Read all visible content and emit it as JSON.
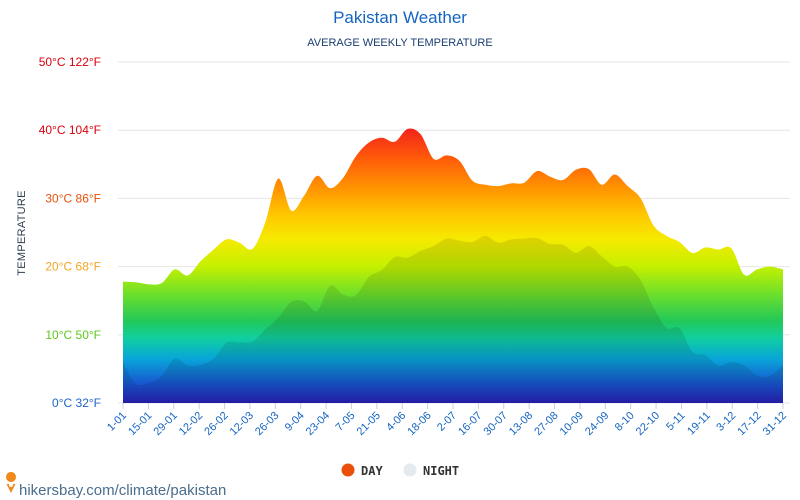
{
  "chart_data": {
    "type": "area",
    "title": "Pakistan Weather",
    "subtitle": "AVERAGE WEEKLY TEMPERATURE",
    "ylabel": "TEMPERATURE",
    "ylim": [
      0,
      50
    ],
    "yticks": [
      {
        "value": 0,
        "label": "0°C 32°F",
        "color": "#1e64c8"
      },
      {
        "value": 10,
        "label": "10°C 50°F",
        "color": "#5fc91e"
      },
      {
        "value": 20,
        "label": "20°C 68°F",
        "color": "#f5a623"
      },
      {
        "value": 30,
        "label": "30°C 86°F",
        "color": "#e8500a"
      },
      {
        "value": 40,
        "label": "40°C 104°F",
        "color": "#d9000d"
      },
      {
        "value": 50,
        "label": "50°C 122°F",
        "color": "#d9000d"
      }
    ],
    "xticks": [
      "1-01",
      "15-01",
      "29-01",
      "12-02",
      "26-02",
      "12-03",
      "26-03",
      "9-04",
      "23-04",
      "7-05",
      "21-05",
      "4-06",
      "18-06",
      "2-07",
      "16-07",
      "30-07",
      "13-08",
      "27-08",
      "10-09",
      "24-09",
      "8-10",
      "22-10",
      "5-11",
      "19-11",
      "3-12",
      "17-12",
      "31-12"
    ],
    "grid": true,
    "legend_position": "bottom",
    "series": [
      {
        "name": "DAY",
        "color": "#e8500a",
        "values": [
          17.8,
          17.7,
          17.4,
          17.6,
          19.6,
          18.7,
          20.8,
          22.5,
          24.0,
          23.5,
          22.6,
          26.5,
          32.9,
          28.2,
          30.4,
          33.3,
          31.5,
          33.0,
          36.2,
          38.2,
          38.9,
          38.3,
          40.2,
          39.4,
          35.8,
          36.3,
          35.5,
          32.6,
          32.0,
          31.8,
          32.2,
          32.3,
          34.0,
          33.2,
          32.7,
          34.2,
          34.3,
          32.0,
          33.5,
          31.8,
          30.0,
          26.0,
          24.5,
          23.6,
          22.0,
          22.8,
          22.5,
          22.7,
          18.8,
          19.6,
          20.0,
          19.6
        ]
      },
      {
        "name": "NIGHT",
        "color": "#e5eaef",
        "values": [
          6.0,
          2.8,
          3.0,
          4.0,
          6.5,
          5.5,
          5.6,
          6.5,
          8.8,
          8.9,
          9.0,
          10.8,
          12.5,
          14.8,
          14.9,
          13.5,
          17.2,
          15.9,
          15.8,
          18.5,
          19.5,
          21.4,
          21.3,
          22.3,
          23.0,
          24.1,
          23.8,
          23.6,
          24.5,
          23.5,
          24.0,
          24.1,
          24.2,
          23.3,
          23.2,
          22.0,
          23.0,
          21.5,
          20.0,
          20.0,
          18.0,
          14.0,
          11.0,
          11.0,
          7.5,
          7.0,
          5.5,
          6.0,
          5.5,
          4.0,
          4.0,
          5.5
        ]
      }
    ]
  },
  "footer": {
    "source_text": "hikersbay.com/climate/pakistan"
  }
}
